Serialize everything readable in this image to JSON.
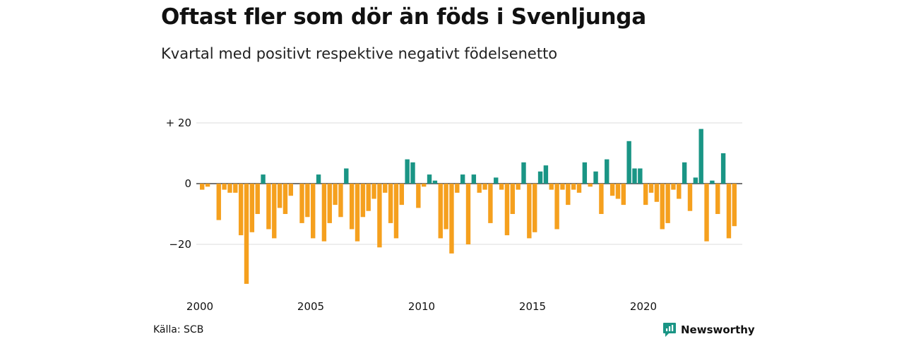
{
  "chart_data": {
    "type": "bar",
    "title": "Oftast fler som dör än föds i Svenljunga",
    "subtitle": "Kvartal med positivt respektive negativt födelsenetto",
    "source": "Källa: SCB",
    "x_start": 2000,
    "x_step": 0.25,
    "values": [
      -2,
      -1,
      0,
      -12,
      -2,
      -3,
      -3,
      -17,
      -33,
      -16,
      -10,
      3,
      -15,
      -18,
      -8,
      -10,
      -4,
      0,
      -13,
      -11,
      -18,
      3,
      -19,
      -13,
      -7,
      -11,
      5,
      -15,
      -19,
      -11,
      -9,
      -5,
      -21,
      -3,
      -13,
      -18,
      -7,
      8,
      7,
      -8,
      -1,
      3,
      1,
      -18,
      -15,
      -23,
      -3,
      3,
      -20,
      3,
      -3,
      -2,
      -13,
      2,
      -2,
      -17,
      -10,
      -2,
      7,
      -18,
      -16,
      4,
      6,
      -2,
      -15,
      -2,
      -7,
      -2,
      -3,
      7,
      -1,
      4,
      -10,
      8,
      -4,
      -5,
      -7,
      14,
      5,
      5,
      -7,
      -3,
      -6,
      -15,
      -13,
      -2,
      -5,
      7,
      -9,
      2,
      18,
      -19,
      1,
      -10,
      10,
      -18,
      -14
    ],
    "yticks": [
      20,
      0,
      -20
    ],
    "ytick_labels": [
      "+ 20",
      "0",
      "−20"
    ],
    "xticks": [
      2000,
      2005,
      2010,
      2015,
      2020
    ],
    "xtick_labels": [
      "2000",
      "2005",
      "2010",
      "2015",
      "2020"
    ],
    "ylim": [
      -35,
      22
    ],
    "grid": true,
    "positive_color": "#1a9585",
    "negative_color": "#f5a01e"
  },
  "branding": {
    "name": "Newsworthy",
    "icon": "newsworthy-logo-icon",
    "icon_color": "#1a9585"
  }
}
